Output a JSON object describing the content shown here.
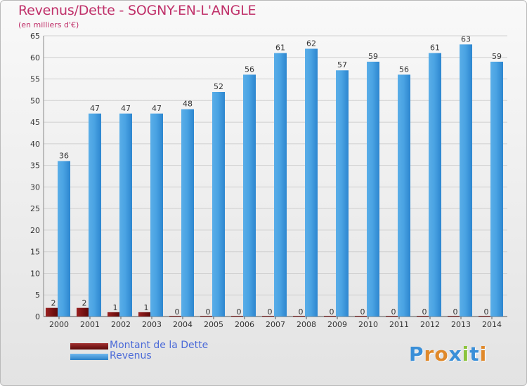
{
  "title": "Revenus/Dette - SOGNY-EN-L'ANGLE",
  "subtitle": "(en milliers d'€)",
  "logo_text": "Proxiti",
  "colors": {
    "title": "#c0316a",
    "revenus": "#3a97dc",
    "dette": "#7a1212",
    "legend_text": "#4b6ad8"
  },
  "chart_data": {
    "type": "bar",
    "title": "Revenus/Dette - SOGNY-EN-L'ANGLE",
    "subtitle": "(en milliers d'€)",
    "categories": [
      "2000",
      "2001",
      "2002",
      "2003",
      "2004",
      "2005",
      "2006",
      "2007",
      "2008",
      "2009",
      "2010",
      "2011",
      "2012",
      "2013",
      "2014"
    ],
    "series": [
      {
        "name": "Montant de la Dette",
        "color": "#7a1212",
        "values": [
          2,
          2,
          1,
          1,
          0,
          0,
          0,
          0,
          0,
          0,
          0,
          0,
          0,
          0,
          0
        ]
      },
      {
        "name": "Revenus",
        "color": "#3a97dc",
        "values": [
          36,
          47,
          47,
          47,
          48,
          52,
          56,
          61,
          62,
          57,
          59,
          56,
          61,
          63,
          59
        ]
      }
    ],
    "ylim": [
      0,
      65
    ],
    "yticks": [
      0,
      5,
      10,
      15,
      20,
      25,
      30,
      35,
      40,
      45,
      50,
      55,
      60,
      65
    ],
    "grid": true,
    "legend": "bottom-left"
  }
}
